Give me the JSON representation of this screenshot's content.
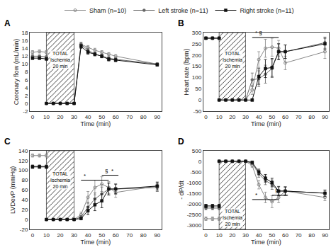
{
  "chart_data": [
    {
      "type": "line",
      "title": "A",
      "xlabel": "Time (min)",
      "ylabel": "Coronary flow (mL/min)",
      "x": [
        0,
        5,
        10,
        10,
        15,
        20,
        25,
        30,
        35,
        40,
        45,
        50,
        55,
        60,
        90
      ],
      "xlim": [
        -2,
        93
      ],
      "xticks": [
        0,
        10,
        20,
        30,
        40,
        50,
        60,
        70,
        80,
        90
      ],
      "ylim": [
        -2,
        18
      ],
      "yticks": [
        -2,
        0,
        2,
        4,
        6,
        8,
        10,
        12,
        14,
        16,
        18
      ],
      "grid": false,
      "shade": {
        "x": [
          10,
          30
        ],
        "y": [
          0,
          18
        ],
        "label": "TOTAL\nIschemia\n20 min",
        "label_y": 13.5
      },
      "significance": [],
      "series": [
        {
          "name": "Sham (n=10)",
          "color": "#888888",
          "marker": "circle-open",
          "values": [
            13.0,
            13.2,
            13.0,
            0.0,
            0.0,
            0.0,
            0.0,
            0.0,
            15.0,
            14.2,
            13.5,
            13.0,
            12.5,
            12.0,
            10.0
          ],
          "errors": [
            0.4,
            0.4,
            0.4,
            0.1,
            0.1,
            0.1,
            0.1,
            0.1,
            0.5,
            0.5,
            0.5,
            0.4,
            0.4,
            0.4,
            0.3
          ]
        },
        {
          "name": "Left stroke (n=11)",
          "color": "#666666",
          "marker": "circle",
          "values": [
            12.0,
            12.0,
            11.8,
            0.0,
            0.0,
            0.0,
            0.0,
            0.0,
            15.0,
            13.5,
            12.5,
            12.0,
            11.5,
            11.2,
            10.0
          ],
          "errors": [
            0.3,
            0.3,
            0.3,
            0.1,
            0.1,
            0.1,
            0.1,
            0.1,
            0.5,
            0.5,
            0.4,
            0.4,
            0.4,
            0.4,
            0.3
          ]
        },
        {
          "name": "Right stroke (n=11)",
          "color": "#111111",
          "marker": "square",
          "values": [
            11.5,
            11.5,
            11.3,
            0.0,
            0.0,
            0.0,
            0.0,
            0.0,
            14.5,
            13.0,
            12.5,
            12.0,
            11.2,
            11.0,
            9.8
          ],
          "errors": [
            0.3,
            0.3,
            0.3,
            0.1,
            0.1,
            0.1,
            0.1,
            0.1,
            0.5,
            0.5,
            0.4,
            0.4,
            0.4,
            0.4,
            0.3
          ]
        }
      ]
    },
    {
      "type": "line",
      "title": "B",
      "xlabel": "Time (min)",
      "ylabel": "Heart rate (bpm)",
      "x": [
        0,
        5,
        10,
        10,
        15,
        20,
        25,
        30,
        35,
        40,
        45,
        50,
        55,
        60,
        90
      ],
      "xlim": [
        -2,
        93
      ],
      "xticks": [
        0,
        10,
        20,
        30,
        40,
        50,
        60,
        70,
        80,
        90
      ],
      "ylim": [
        -50,
        300
      ],
      "yticks": [
        -50,
        0,
        50,
        100,
        150,
        200,
        250,
        300
      ],
      "grid": false,
      "shade": {
        "x": [
          10,
          30
        ],
        "y": [
          0,
          300
        ],
        "label": "TOTAL\nIschemia\n20 min",
        "label_y": 220
      },
      "significance": [
        {
          "x": [
            35,
            55
          ],
          "y": 278,
          "text": "* §"
        }
      ],
      "series": [
        {
          "name": "Sham (n=10)",
          "color": "#888888",
          "marker": "circle-open",
          "values": [
            275,
            275,
            275,
            0,
            0,
            0,
            0,
            0,
            45,
            180,
            230,
            235,
            230,
            165,
            215
          ],
          "errors": [
            5,
            5,
            5,
            2,
            2,
            2,
            2,
            2,
            20,
            35,
            40,
            40,
            35,
            30,
            30
          ]
        },
        {
          "name": "Left stroke (n=11)",
          "color": "#666666",
          "marker": "circle",
          "values": [
            275,
            275,
            275,
            0,
            0,
            0,
            0,
            0,
            90,
            95,
            115,
            140,
            215,
            215,
            255
          ],
          "errors": [
            5,
            5,
            5,
            2,
            2,
            2,
            2,
            2,
            30,
            35,
            40,
            40,
            35,
            30,
            25
          ]
        },
        {
          "name": "Right stroke (n=11)",
          "color": "#111111",
          "marker": "square",
          "values": [
            275,
            275,
            275,
            0,
            0,
            0,
            0,
            0,
            0,
            105,
            140,
            145,
            215,
            215,
            250
          ],
          "errors": [
            5,
            5,
            5,
            2,
            2,
            2,
            2,
            2,
            5,
            35,
            40,
            40,
            35,
            30,
            25
          ]
        }
      ]
    },
    {
      "type": "line",
      "title": "C",
      "xlabel": "Time (min)",
      "ylabel": "LVDevP (mmHg)",
      "x": [
        0,
        5,
        10,
        10,
        15,
        20,
        25,
        30,
        35,
        40,
        45,
        50,
        55,
        60,
        90
      ],
      "xlim": [
        -2,
        93
      ],
      "xticks": [
        0,
        10,
        20,
        30,
        40,
        50,
        60,
        70,
        80,
        90
      ],
      "ylim": [
        -20,
        140
      ],
      "yticks": [
        -20,
        0,
        20,
        40,
        60,
        80,
        100,
        120,
        140
      ],
      "grid": false,
      "shade": {
        "x": [
          10,
          30
        ],
        "y": [
          0,
          140
        ],
        "label": "TOTAL\nIschemia\n20 min",
        "label_y": 100
      },
      "significance": [
        {
          "x": [
            35,
            55
          ],
          "y": 80,
          "text": "*"
        },
        {
          "x": [
            50,
            62
          ],
          "y": 90,
          "text": "§  *"
        }
      ],
      "series": [
        {
          "name": "Sham (n=10)",
          "color": "#888888",
          "marker": "circle-open",
          "values": [
            130,
            130,
            130,
            0,
            0,
            0,
            0,
            0,
            10,
            45,
            65,
            72,
            65,
            55,
            68
          ],
          "errors": [
            3,
            3,
            3,
            1,
            1,
            1,
            1,
            1,
            5,
            12,
            15,
            15,
            12,
            10,
            8
          ]
        },
        {
          "name": "Left stroke (n=11)",
          "color": "#666666",
          "marker": "circle",
          "values": [
            108,
            108,
            108,
            0,
            0,
            0,
            0,
            0,
            5,
            25,
            42,
            52,
            62,
            62,
            65
          ],
          "errors": [
            3,
            3,
            3,
            1,
            1,
            1,
            1,
            1,
            3,
            10,
            12,
            14,
            12,
            10,
            8
          ]
        },
        {
          "name": "Right stroke (n=11)",
          "color": "#111111",
          "marker": "square",
          "values": [
            107,
            107,
            107,
            0,
            0,
            0,
            0,
            0,
            2,
            18,
            30,
            38,
            62,
            62,
            68
          ],
          "errors": [
            3,
            3,
            3,
            1,
            1,
            1,
            1,
            1,
            2,
            8,
            12,
            14,
            12,
            10,
            8
          ]
        }
      ]
    },
    {
      "type": "line",
      "title": "D",
      "xlabel": "Time (min)",
      "ylabel": "- dP/dt",
      "x": [
        0,
        5,
        10,
        10,
        15,
        20,
        25,
        30,
        35,
        40,
        45,
        50,
        55,
        60,
        90
      ],
      "xlim": [
        -2,
        93
      ],
      "xticks": [
        0,
        10,
        20,
        30,
        40,
        50,
        60,
        70,
        80,
        90
      ],
      "ylim": [
        -3200,
        500
      ],
      "yticks": [
        500,
        0,
        -500,
        -1000,
        -1500,
        -2000,
        -2500,
        -3000
      ],
      "grid": false,
      "shade": {
        "x": [
          10,
          30
        ],
        "y": [
          -3200,
          0
        ],
        "label": "TOTAL\nIschemia\n20 min",
        "label_y": -2200
      },
      "significance": [
        {
          "x": [
            35,
            55
          ],
          "y": -1800,
          "text": "*"
        },
        {
          "x": [
            50,
            62
          ],
          "y": -1600,
          "text": "§"
        }
      ],
      "series": [
        {
          "name": "Sham (n=10)",
          "color": "#888888",
          "marker": "circle-open",
          "values": [
            -2700,
            -2700,
            -2700,
            0,
            0,
            0,
            0,
            0,
            -200,
            -1100,
            -1700,
            -1900,
            -1700,
            -1400,
            -1700
          ],
          "errors": [
            80,
            80,
            80,
            20,
            20,
            20,
            20,
            20,
            80,
            200,
            250,
            280,
            250,
            200,
            150
          ]
        },
        {
          "name": "Left stroke (n=11)",
          "color": "#666666",
          "marker": "circle",
          "values": [
            -2200,
            -2200,
            -2200,
            0,
            0,
            0,
            0,
            0,
            -100,
            -600,
            -900,
            -1100,
            -1400,
            -1400,
            -1500
          ],
          "errors": [
            80,
            80,
            80,
            20,
            20,
            20,
            20,
            20,
            50,
            150,
            200,
            220,
            220,
            200,
            150
          ]
        },
        {
          "name": "Right stroke (n=11)",
          "color": "#111111",
          "marker": "square",
          "values": [
            -2100,
            -2100,
            -2100,
            0,
            0,
            0,
            0,
            0,
            -50,
            -500,
            -800,
            -1000,
            -1400,
            -1400,
            -1500
          ],
          "errors": [
            80,
            80,
            80,
            20,
            20,
            20,
            20,
            20,
            40,
            130,
            180,
            200,
            200,
            190,
            140
          ]
        }
      ]
    }
  ]
}
